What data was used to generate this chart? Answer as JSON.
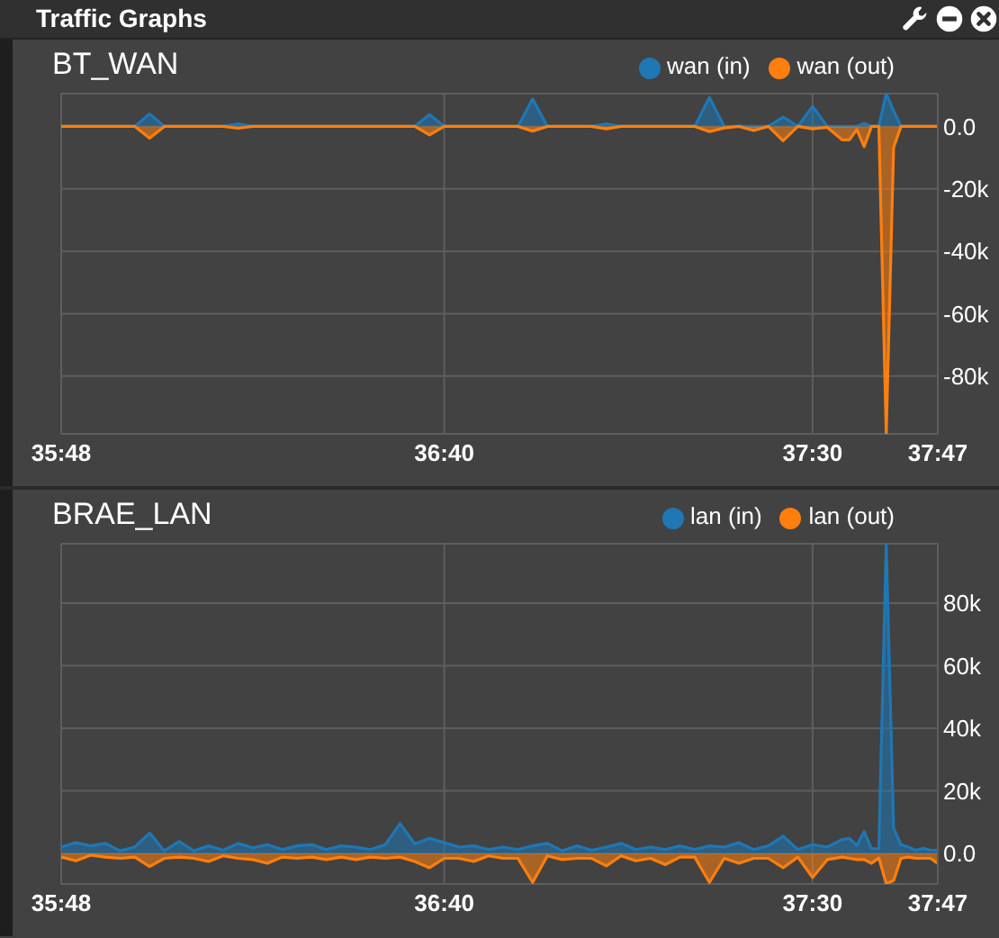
{
  "chart_data": [
    {
      "type": "area",
      "title": "Traffic Graphs",
      "subtitle": "BT_WAN",
      "x": [
        2148,
        2150,
        2152,
        2154,
        2156,
        2158,
        2160,
        2162,
        2164,
        2166,
        2168,
        2170,
        2172,
        2174,
        2176,
        2178,
        2180,
        2182,
        2184,
        2186,
        2188,
        2190,
        2192,
        2194,
        2196,
        2198,
        2200,
        2202,
        2204,
        2206,
        2208,
        2210,
        2212,
        2214,
        2216,
        2218,
        2220,
        2222,
        2224,
        2226,
        2228,
        2230,
        2232,
        2234,
        2236,
        2238,
        2240,
        2242,
        2244,
        2246,
        2248,
        2250,
        2252,
        2254,
        2255,
        2256,
        2257,
        2258,
        2259,
        2260,
        2261,
        2262,
        2263,
        2264,
        2265,
        2266,
        2267
      ],
      "series": [
        {
          "name": "wan (in)",
          "color": "#1f77b4",
          "values": [
            0,
            0,
            0,
            0,
            0,
            0,
            4000,
            0,
            0,
            0,
            0,
            0,
            800,
            0,
            0,
            0,
            0,
            0,
            0,
            0,
            0,
            0,
            0,
            0,
            0,
            3800,
            0,
            0,
            0,
            0,
            0,
            0,
            8800,
            0,
            0,
            0,
            0,
            800,
            0,
            0,
            0,
            0,
            0,
            0,
            9300,
            0,
            0,
            0,
            0,
            3000,
            0,
            6400,
            0,
            0,
            0,
            0,
            1000,
            0,
            0,
            10500,
            5000,
            0,
            0,
            0,
            0,
            0,
            0
          ]
        },
        {
          "name": "wan (out)",
          "color": "#ff7f0e",
          "values": [
            0,
            0,
            0,
            0,
            0,
            0,
            -3800,
            0,
            0,
            0,
            0,
            0,
            -600,
            0,
            0,
            0,
            0,
            0,
            0,
            0,
            0,
            0,
            0,
            0,
            0,
            -2700,
            0,
            0,
            0,
            0,
            0,
            0,
            -1500,
            0,
            0,
            0,
            0,
            -800,
            0,
            0,
            0,
            0,
            0,
            0,
            -1700,
            -500,
            0,
            -1300,
            0,
            -4600,
            0,
            -800,
            -300,
            -4300,
            -4300,
            -1000,
            -6500,
            0,
            0,
            -98500,
            -6800,
            0,
            0,
            0,
            0,
            0,
            0
          ]
        }
      ],
      "xlim": [
        2148,
        2267
      ],
      "xticks": [
        {
          "value": 2148,
          "label": "35:48"
        },
        {
          "value": 2200,
          "label": "36:40"
        },
        {
          "value": 2250,
          "label": "37:30"
        },
        {
          "value": 2267,
          "label": "37:47"
        }
      ],
      "ylim": [
        -98500,
        10500
      ],
      "yticks": [
        {
          "value": 0,
          "label": "0.0"
        },
        {
          "value": -20000,
          "label": "-20k"
        },
        {
          "value": -40000,
          "label": "-40k"
        },
        {
          "value": -60000,
          "label": "-60k"
        },
        {
          "value": -80000,
          "label": "-80k"
        }
      ],
      "grid": true,
      "legend": "top right"
    },
    {
      "type": "area",
      "subtitle": "BRAE_LAN",
      "x": [
        2148,
        2150,
        2152,
        2154,
        2156,
        2158,
        2160,
        2162,
        2164,
        2166,
        2168,
        2170,
        2172,
        2174,
        2176,
        2178,
        2180,
        2182,
        2184,
        2186,
        2188,
        2190,
        2192,
        2194,
        2196,
        2198,
        2200,
        2202,
        2204,
        2206,
        2208,
        2210,
        2212,
        2214,
        2216,
        2218,
        2220,
        2222,
        2224,
        2226,
        2228,
        2230,
        2232,
        2234,
        2236,
        2238,
        2240,
        2242,
        2244,
        2246,
        2248,
        2250,
        2252,
        2254,
        2255,
        2256,
        2257,
        2258,
        2259,
        2260,
        2261,
        2262,
        2263,
        2264,
        2265,
        2266,
        2267
      ],
      "series": [
        {
          "name": "lan (in)",
          "color": "#1f77b4",
          "values": [
            2000,
            3400,
            2400,
            3200,
            800,
            2000,
            6500,
            800,
            3800,
            800,
            2400,
            1000,
            3200,
            1800,
            2800,
            1200,
            2400,
            2800,
            1200,
            2400,
            2000,
            1200,
            2800,
            9500,
            3000,
            4800,
            3400,
            2000,
            2400,
            1200,
            2000,
            1200,
            2400,
            3200,
            800,
            2400,
            1000,
            2000,
            3200,
            1200,
            2000,
            1200,
            2400,
            1200,
            2400,
            2000,
            3400,
            1200,
            2400,
            5500,
            1200,
            2800,
            2000,
            4400,
            4800,
            2500,
            6900,
            1500,
            1500,
            99000,
            8000,
            2800,
            2000,
            1000,
            1600,
            1000,
            1000
          ]
        },
        {
          "name": "lan (out)",
          "color": "#ff7f0e",
          "values": [
            -1200,
            -2400,
            -600,
            -1200,
            -1600,
            -1200,
            -4200,
            -1600,
            -1200,
            -1600,
            -2600,
            -800,
            -1600,
            -2000,
            -3200,
            -1200,
            -1600,
            -1200,
            -2000,
            -1200,
            -2000,
            -1200,
            -1600,
            -1200,
            -2600,
            -4600,
            -1600,
            -1600,
            -2600,
            -800,
            -1600,
            -1600,
            -9300,
            -800,
            -2000,
            -1600,
            -1600,
            -4000,
            -800,
            -2400,
            -1600,
            -3600,
            -1200,
            -1200,
            -9300,
            -1600,
            -3200,
            -1600,
            -1600,
            -4600,
            -1200,
            -7700,
            -2000,
            -1200,
            -1600,
            -2000,
            -2000,
            -3200,
            -1500,
            -9700,
            -8700,
            -1600,
            -1200,
            -1600,
            -1600,
            -1600,
            -3200
          ]
        }
      ],
      "xlim": [
        2148,
        2267
      ],
      "xticks": [
        {
          "value": 2148,
          "label": "35:48"
        },
        {
          "value": 2200,
          "label": "36:40"
        },
        {
          "value": 2250,
          "label": "37:30"
        },
        {
          "value": 2267,
          "label": "37:47"
        }
      ],
      "ylim": [
        -9800,
        99000
      ],
      "yticks": [
        {
          "value": 0,
          "label": "0.0"
        },
        {
          "value": 20000,
          "label": "20k"
        },
        {
          "value": 40000,
          "label": "40k"
        },
        {
          "value": 60000,
          "label": "60k"
        },
        {
          "value": 80000,
          "label": "80k"
        }
      ],
      "grid": true,
      "legend": "top right"
    }
  ]
}
